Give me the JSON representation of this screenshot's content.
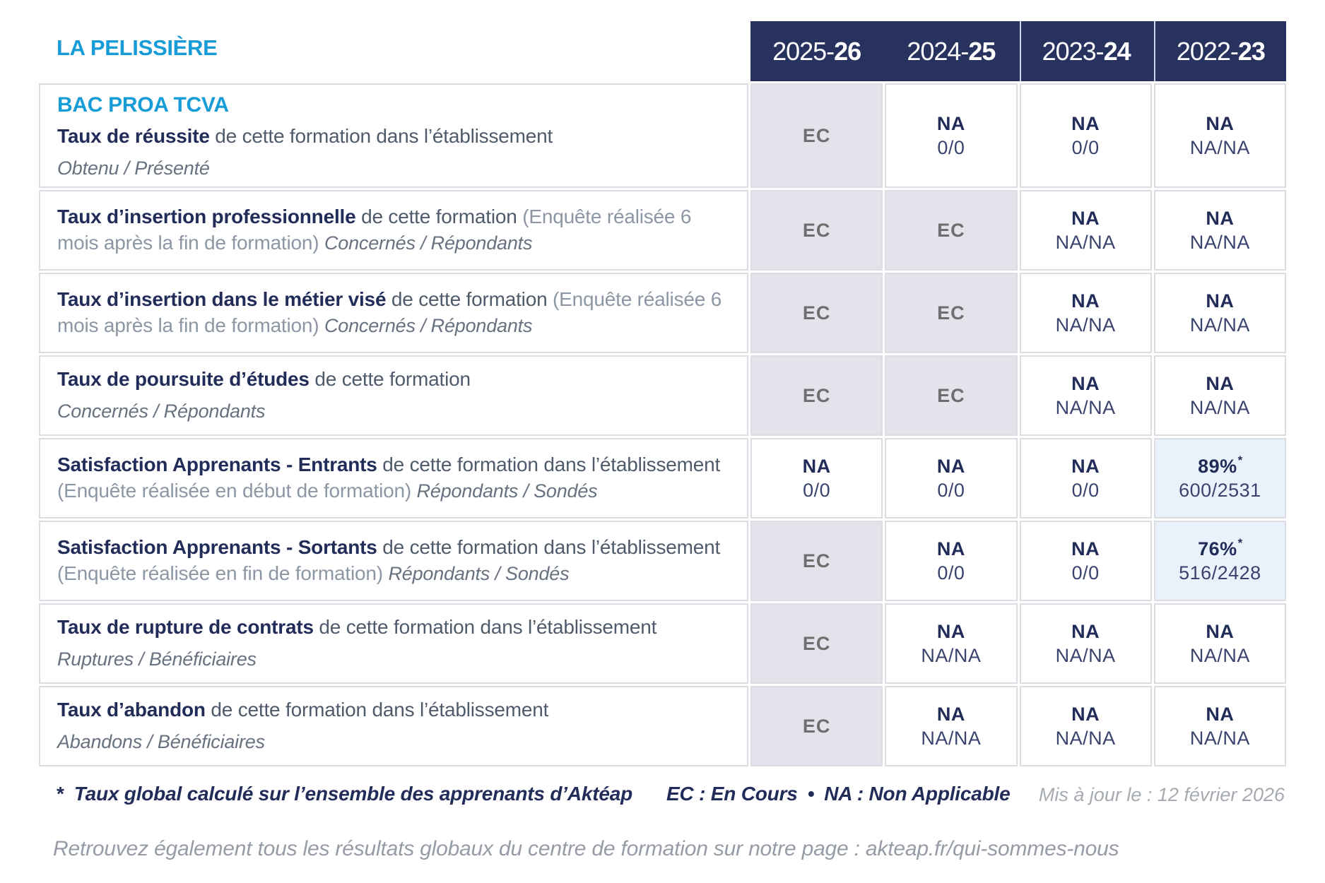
{
  "header": {
    "site_title": "LA PELISSIÈRE",
    "program_title": "BAC PROA TCVA",
    "columns": [
      {
        "prefix": "2025-",
        "suffix": "26"
      },
      {
        "prefix": "2024-",
        "suffix": "25"
      },
      {
        "prefix": "2023-",
        "suffix": "24"
      },
      {
        "prefix": "2022-",
        "suffix": "23"
      }
    ]
  },
  "rows": [
    {
      "title": "Taux de réussite",
      "desc": "de cette formation dans l’établissement",
      "sub": "Obtenu / Présenté",
      "cells": [
        {
          "value": "EC"
        },
        {
          "value": "NA",
          "detail": "0/0"
        },
        {
          "value": "NA",
          "detail": "0/0"
        },
        {
          "value": "NA",
          "detail": "NA/NA"
        }
      ]
    },
    {
      "title": "Taux d’insertion professionnelle",
      "desc": "de cette formation",
      "paren": "(Enquête réalisée 6 mois après la fin de formation)",
      "sub": "Concernés / Répondants",
      "cells": [
        {
          "value": "EC"
        },
        {
          "value": "EC"
        },
        {
          "value": "NA",
          "detail": "NA/NA"
        },
        {
          "value": "NA",
          "detail": "NA/NA"
        }
      ]
    },
    {
      "title": "Taux d’insertion dans le métier visé",
      "desc": "de cette formation",
      "paren": "(Enquête réalisée 6 mois après la fin de formation)",
      "sub": "Concernés / Répondants",
      "cells": [
        {
          "value": "EC"
        },
        {
          "value": "EC"
        },
        {
          "value": "NA",
          "detail": "NA/NA"
        },
        {
          "value": "NA",
          "detail": "NA/NA"
        }
      ]
    },
    {
      "title": "Taux de poursuite d’études",
      "desc": "de cette formation",
      "sub": "Concernés / Répondants",
      "cells": [
        {
          "value": "EC"
        },
        {
          "value": "EC"
        },
        {
          "value": "NA",
          "detail": "NA/NA"
        },
        {
          "value": "NA",
          "detail": "NA/NA"
        }
      ]
    },
    {
      "title": "Satisfaction Apprenants - Entrants",
      "desc": "de cette formation dans l’établissement",
      "paren": "(Enquête réalisée en début de formation)",
      "sub": "Répondants / Sondés",
      "cells": [
        {
          "value": "NA",
          "detail": "0/0"
        },
        {
          "value": "NA",
          "detail": "0/0"
        },
        {
          "value": "NA",
          "detail": "0/0"
        },
        {
          "value": "89%",
          "detail": "600/2531",
          "starred": true
        }
      ]
    },
    {
      "title": "Satisfaction Apprenants - Sortants",
      "desc": "de cette formation dans l’établissement",
      "paren": "(Enquête réalisée en fin de formation)",
      "sub": "Répondants / Sondés",
      "cells": [
        {
          "value": "EC"
        },
        {
          "value": "NA",
          "detail": "0/0"
        },
        {
          "value": "NA",
          "detail": "0/0"
        },
        {
          "value": "76%",
          "detail": "516/2428",
          "starred": true
        }
      ]
    },
    {
      "title": "Taux de rupture de contrats",
      "desc": "de cette formation dans l’établissement",
      "sub": "Ruptures / Bénéficiaires",
      "cells": [
        {
          "value": "EC"
        },
        {
          "value": "NA",
          "detail": "NA/NA"
        },
        {
          "value": "NA",
          "detail": "NA/NA"
        },
        {
          "value": "NA",
          "detail": "NA/NA"
        }
      ]
    },
    {
      "title": "Taux d’abandon",
      "desc": "de cette formation dans l’établissement",
      "sub": "Abandons / Bénéficiaires",
      "cells": [
        {
          "value": "EC"
        },
        {
          "value": "NA",
          "detail": "NA/NA"
        },
        {
          "value": "NA",
          "detail": "NA/NA"
        },
        {
          "value": "NA",
          "detail": "NA/NA"
        }
      ]
    }
  ],
  "footer": {
    "footnote_marker": "*",
    "footnote": "Taux global calculé sur l’ensemble des apprenants d’Aktéap",
    "legend_ec": "EC : En Cours",
    "legend_sep": "•",
    "legend_na": "NA : Non Applicable",
    "updated": "Mis à jour le : 12 février 2026",
    "bottom_note": "Retrouvez également tous les résultats globaux du centre de formation sur notre page : akteap.fr/qui-sommes-nous"
  },
  "colors": {
    "accent_blue": "#189cd7",
    "navy_text": "#222c59",
    "header_bg": "#28325f",
    "ec_text": "#6e6e6e",
    "ec_cell_bg": "#e3e3ec",
    "highlight_cell_bg": "#e9f2fa",
    "border": "#dcdce3"
  }
}
